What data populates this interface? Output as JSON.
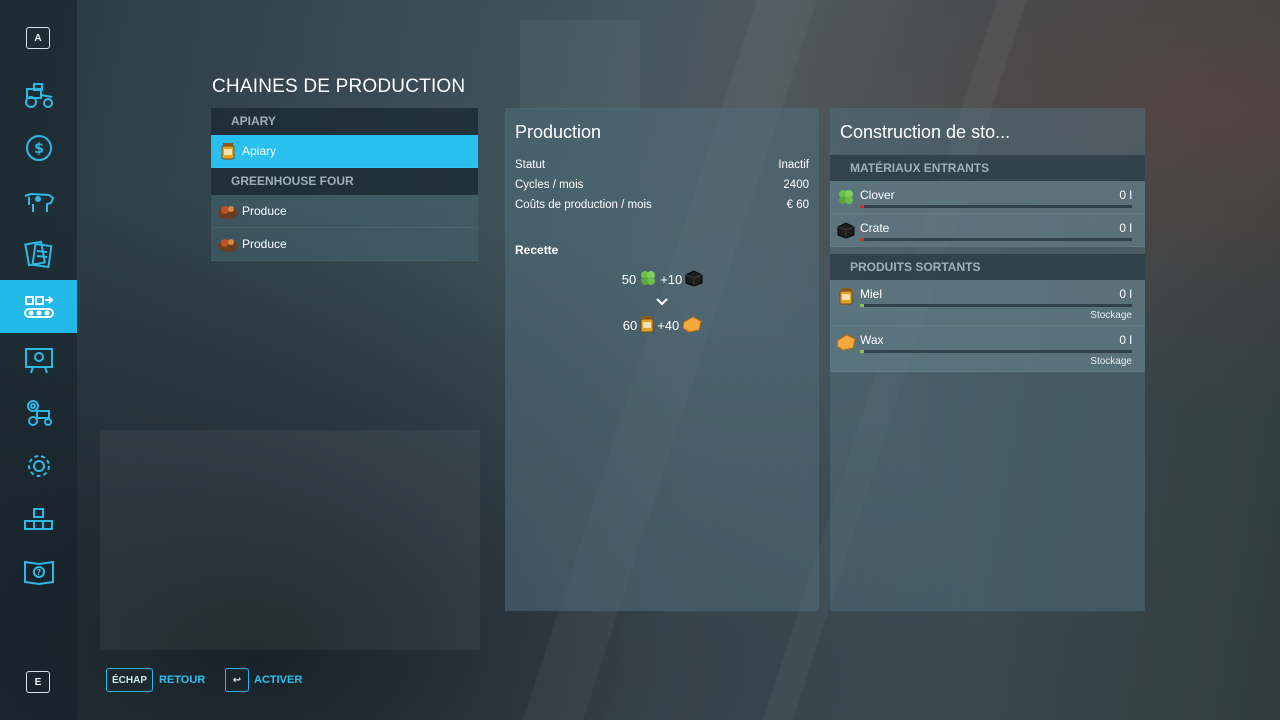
{
  "sidebar": {
    "top_key": "A",
    "bottom_key": "E",
    "items": [
      {
        "icon": "tractor-icon"
      },
      {
        "icon": "dollar-icon"
      },
      {
        "icon": "cow-icon"
      },
      {
        "icon": "contracts-icon"
      },
      {
        "icon": "production-icon",
        "active": true
      },
      {
        "icon": "map-icon"
      },
      {
        "icon": "vehicle-settings-icon"
      },
      {
        "icon": "gear-icon"
      },
      {
        "icon": "pallets-icon"
      },
      {
        "icon": "help-book-icon"
      }
    ]
  },
  "page": {
    "title": "CHAINES DE PRODUCTION"
  },
  "list": {
    "sections": [
      {
        "header": "APIARY",
        "items": [
          {
            "label": "Apiary",
            "icon": "honey-jar-icon"
          }
        ]
      },
      {
        "header": "GREENHOUSE FOUR",
        "items": [
          {
            "label": "Produce",
            "icon": "produce-icon"
          },
          {
            "label": "Produce",
            "icon": "produce-icon"
          }
        ]
      }
    ]
  },
  "production": {
    "title": "Production",
    "stats": [
      {
        "label": "Statut",
        "value": "Inactif"
      },
      {
        "label": "Cycles / mois",
        "value": "2400"
      },
      {
        "label": "Coûts de production / mois",
        "value": "€ 60"
      }
    ],
    "recipe_label": "Recette",
    "recipe_in": {
      "a": "50",
      "b": "+10"
    },
    "recipe_out": {
      "a": "60",
      "b": "+40"
    }
  },
  "storage": {
    "title": "Construction de sto...",
    "inputs_header": "MATÉRIAUX ENTRANTS",
    "inputs": [
      {
        "name": "Clover",
        "qty": "0 l",
        "icon": "clover-icon",
        "fill_color": "#c0392b"
      },
      {
        "name": "Crate",
        "qty": "0 l",
        "icon": "crate-icon",
        "fill_color": "#c0392b"
      }
    ],
    "outputs_header": "PRODUITS SORTANTS",
    "outputs": [
      {
        "name": "Miel",
        "qty": "0 l",
        "sub": "Stockage",
        "icon": "honey-jar-icon",
        "fill_color": "#8bc34a"
      },
      {
        "name": "Wax",
        "qty": "0 l",
        "sub": "Stockage",
        "icon": "wax-icon",
        "fill_color": "#8bc34a"
      }
    ]
  },
  "footer": {
    "back_key": "ÉCHAP",
    "back_label": "RETOUR",
    "activate_key": "↩",
    "activate_label": "ACTIVER"
  },
  "colors": {
    "accent": "#29bfee",
    "muted_header": "#9fb0b8"
  }
}
